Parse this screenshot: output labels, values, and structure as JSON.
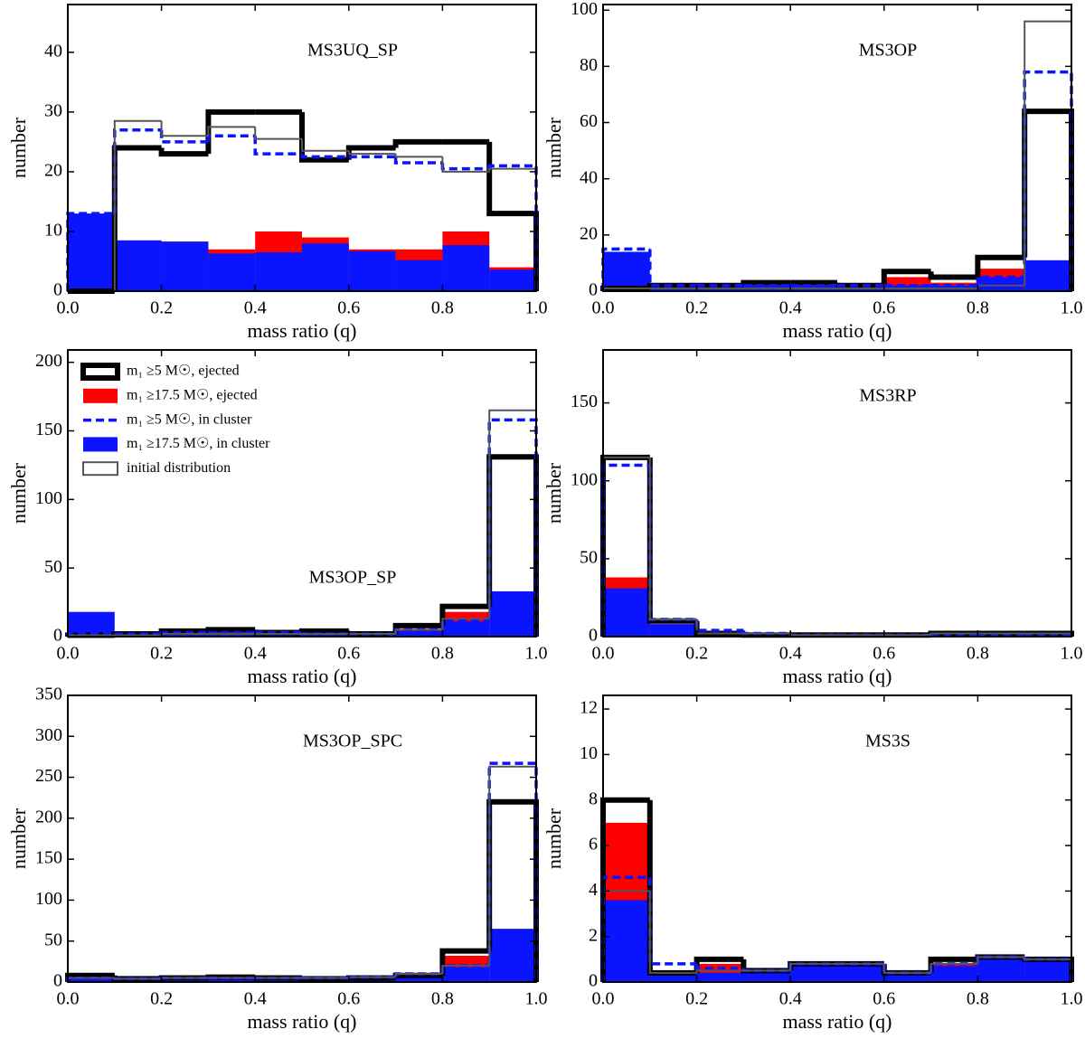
{
  "chart_data": [
    {
      "type": "histogram",
      "title": "MS3UQ_SP",
      "xlabel": "mass ratio (q)",
      "ylabel": "number",
      "bins": [
        0,
        0.1,
        0.2,
        0.3,
        0.4,
        0.5,
        0.6,
        0.7,
        0.8,
        0.9,
        1.0
      ],
      "xlim": [
        0,
        1
      ],
      "xticks": [
        {
          "value": 0,
          "label": "0.0"
        },
        0.2,
        0.4,
        0.6,
        0.8,
        {
          "value": 1,
          "label": "1.0"
        }
      ],
      "ylim": [
        0,
        48
      ],
      "yticks": [
        0,
        10,
        20,
        30,
        40
      ],
      "series": [
        {
          "style": "fill",
          "color": "#ff0000",
          "values": [
            12,
            8.5,
            8.3,
            7,
            10,
            9,
            7,
            7,
            10,
            4
          ]
        },
        {
          "style": "fill",
          "color": "#0a14ff",
          "values": [
            13,
            8.5,
            8.3,
            6.3,
            6.5,
            8,
            6.7,
            5.2,
            7.7,
            3.6
          ]
        },
        {
          "style": "step",
          "color": "#000000",
          "values": [
            0,
            24,
            23,
            30,
            30,
            22,
            24,
            25,
            25,
            13
          ]
        },
        {
          "style": "dashed",
          "color": "#0a14ff",
          "values": [
            13,
            27,
            25,
            26,
            23,
            22.5,
            22.5,
            21.5,
            20.5,
            21
          ]
        },
        {
          "style": "thin",
          "color": "#555555",
          "values": [
            0,
            28.5,
            26,
            27.5,
            25.5,
            23.5,
            23,
            22.5,
            20,
            20.5
          ]
        }
      ]
    },
    {
      "type": "histogram",
      "title": "MS3OP",
      "xlabel": "mass ratio (q)",
      "ylabel": "number",
      "bins": [
        0,
        0.1,
        0.2,
        0.3,
        0.4,
        0.5,
        0.6,
        0.7,
        0.8,
        0.9,
        1.0
      ],
      "xlim": [
        0,
        1
      ],
      "xticks": [
        {
          "value": 0,
          "label": "0.0"
        },
        0.2,
        0.4,
        0.6,
        0.8,
        {
          "value": 1,
          "label": "1.0"
        }
      ],
      "ylim": [
        0,
        102
      ],
      "yticks": [
        0,
        20,
        40,
        60,
        80,
        100
      ],
      "series": [
        {
          "style": "fill",
          "color": "#ff0000",
          "values": [
            1,
            1,
            1,
            2,
            2,
            2,
            5,
            3,
            8,
            0
          ]
        },
        {
          "style": "fill",
          "color": "#0a14ff",
          "values": [
            14,
            2,
            2,
            2,
            2,
            2,
            2,
            2,
            5,
            11
          ]
        },
        {
          "style": "step",
          "color": "#000000",
          "values": [
            1,
            2,
            2,
            3,
            3,
            2,
            7,
            5,
            12,
            64
          ]
        },
        {
          "style": "dashed",
          "color": "#0a14ff",
          "values": [
            15,
            2,
            2,
            2,
            2,
            2,
            2,
            2,
            5,
            78
          ]
        },
        {
          "style": "thin",
          "color": "#555555",
          "values": [
            1,
            1,
            1,
            1,
            1,
            1,
            1,
            1,
            2,
            96
          ]
        }
      ]
    },
    {
      "type": "histogram",
      "title": "MS3OP_SP",
      "xlabel": "mass ratio (q)",
      "ylabel": "number",
      "bins": [
        0,
        0.1,
        0.2,
        0.3,
        0.4,
        0.5,
        0.6,
        0.7,
        0.8,
        0.9,
        1.0
      ],
      "xlim": [
        0,
        1
      ],
      "xticks": [
        {
          "value": 0,
          "label": "0.0"
        },
        0.2,
        0.4,
        0.6,
        0.8,
        {
          "value": 1,
          "label": "1.0"
        }
      ],
      "ylim": [
        0,
        209
      ],
      "yticks": [
        0,
        50,
        100,
        150,
        200
      ],
      "series": [
        {
          "name": "m₁ ≥17.5 M☉, ejected",
          "style": "fill",
          "color": "#ff0000",
          "values": [
            1,
            1,
            2,
            2,
            2,
            2,
            1,
            5,
            18,
            0
          ]
        },
        {
          "name": "m₁ ≥17.5 M☉, in cluster",
          "style": "fill",
          "color": "#0a14ff",
          "values": [
            18,
            2,
            3,
            3,
            3,
            2,
            1,
            4,
            11,
            33
          ]
        },
        {
          "name": "m₁ ≥5 M☉, ejected",
          "style": "step",
          "color": "#000000",
          "values": [
            1,
            2,
            4,
            5,
            3,
            4,
            2,
            8,
            22,
            131
          ]
        },
        {
          "name": "m₁ ≥5 M☉, in cluster",
          "style": "dashed",
          "color": "#0a14ff",
          "values": [
            2,
            2,
            3,
            3,
            3,
            2,
            2,
            5,
            12,
            158
          ]
        },
        {
          "name": "initial distribution",
          "style": "thin",
          "color": "#555555",
          "values": [
            1,
            1,
            2,
            2,
            2,
            2,
            2,
            5,
            13,
            165
          ]
        }
      ]
    },
    {
      "type": "histogram",
      "title": "MS3RP",
      "xlabel": "mass ratio (q)",
      "ylabel": "number",
      "bins": [
        0,
        0.1,
        0.2,
        0.3,
        0.4,
        0.5,
        0.6,
        0.7,
        0.8,
        0.9,
        1.0
      ],
      "xlim": [
        0,
        1
      ],
      "xticks": [
        {
          "value": 0,
          "label": "0.0"
        },
        0.2,
        0.4,
        0.6,
        0.8,
        {
          "value": 1,
          "label": "1.0"
        }
      ],
      "ylim": [
        0,
        184
      ],
      "yticks": [
        0,
        50,
        100,
        150
      ],
      "series": [
        {
          "style": "fill",
          "color": "#ff0000",
          "values": [
            38,
            8,
            1,
            1,
            1,
            1,
            1,
            1,
            1,
            1
          ]
        },
        {
          "style": "fill",
          "color": "#0a14ff",
          "values": [
            31,
            8,
            1,
            1,
            1,
            1,
            1,
            1,
            1,
            1
          ]
        },
        {
          "style": "step",
          "color": "#000000",
          "values": [
            115,
            10,
            2,
            1,
            1,
            1,
            1,
            2,
            2,
            2
          ]
        },
        {
          "style": "dashed",
          "color": "#0a14ff",
          "values": [
            110,
            11,
            4,
            2,
            1,
            1,
            1,
            1,
            1,
            1
          ]
        },
        {
          "style": "thin",
          "color": "#555555",
          "values": [
            115,
            11,
            2,
            2,
            1,
            1,
            1,
            2,
            2,
            2
          ]
        }
      ]
    },
    {
      "type": "histogram",
      "title": "MS3OP_SPC",
      "xlabel": "mass ratio (q)",
      "ylabel": "number",
      "bins": [
        0,
        0.1,
        0.2,
        0.3,
        0.4,
        0.5,
        0.6,
        0.7,
        0.8,
        0.9,
        1.0
      ],
      "xlim": [
        0,
        1
      ],
      "xticks": [
        {
          "value": 0,
          "label": "0.0"
        },
        0.2,
        0.4,
        0.6,
        0.8,
        {
          "value": 1,
          "label": "1.0"
        }
      ],
      "ylim": [
        0,
        350
      ],
      "yticks": [
        0,
        50,
        100,
        150,
        200,
        250,
        300,
        350
      ],
      "series": [
        {
          "style": "fill",
          "color": "#ff0000",
          "values": [
            5,
            3,
            4,
            4,
            3,
            3,
            3,
            6,
            32,
            0
          ]
        },
        {
          "style": "fill",
          "color": "#0a14ff",
          "values": [
            10,
            4,
            6,
            6,
            5,
            5,
            5,
            10,
            18,
            65
          ]
        },
        {
          "style": "step",
          "color": "#000000",
          "values": [
            8,
            4,
            5,
            6,
            5,
            4,
            5,
            8,
            38,
            220
          ]
        },
        {
          "style": "dashed",
          "color": "#0a14ff",
          "values": [
            5,
            4,
            5,
            5,
            5,
            5,
            6,
            10,
            20,
            267
          ]
        },
        {
          "style": "thin",
          "color": "#555555",
          "values": [
            5,
            4,
            5,
            5,
            5,
            5,
            6,
            10,
            20,
            263
          ]
        }
      ]
    },
    {
      "type": "histogram",
      "title": "MS3S",
      "xlabel": "mass ratio (q)",
      "ylabel": "number",
      "bins": [
        0,
        0.1,
        0.2,
        0.3,
        0.4,
        0.5,
        0.6,
        0.7,
        0.8,
        0.9,
        1.0
      ],
      "xlim": [
        0,
        1
      ],
      "xticks": [
        {
          "value": 0,
          "label": "0.0"
        },
        0.2,
        0.4,
        0.6,
        0.8,
        {
          "value": 1,
          "label": "1.0"
        }
      ],
      "ylim": [
        0,
        12.6
      ],
      "yticks": [
        0,
        2,
        4,
        6,
        8,
        10,
        12
      ],
      "series": [
        {
          "style": "fill",
          "color": "#ff0000",
          "values": [
            7,
            0.3,
            0.8,
            0.4,
            0.7,
            0.7,
            0.3,
            0.8,
            0.9,
            0.9
          ]
        },
        {
          "style": "fill",
          "color": "#0a14ff",
          "values": [
            3.6,
            0.3,
            0.4,
            0.5,
            0.8,
            0.8,
            0.3,
            0.7,
            1.2,
            1
          ]
        },
        {
          "style": "step",
          "color": "#000000",
          "values": [
            8,
            0.4,
            1,
            0.5,
            0.8,
            0.8,
            0.4,
            1,
            1.1,
            1
          ]
        },
        {
          "style": "dashed",
          "color": "#0a14ff",
          "values": [
            4.6,
            0.8,
            0.6,
            0.5,
            0.8,
            0.8,
            0.4,
            0.8,
            1.1,
            1
          ]
        },
        {
          "style": "thin",
          "color": "#555555",
          "values": [
            4,
            0.4,
            0.5,
            0.5,
            0.8,
            0.8,
            0.4,
            0.8,
            1.1,
            1
          ]
        }
      ]
    }
  ]
}
